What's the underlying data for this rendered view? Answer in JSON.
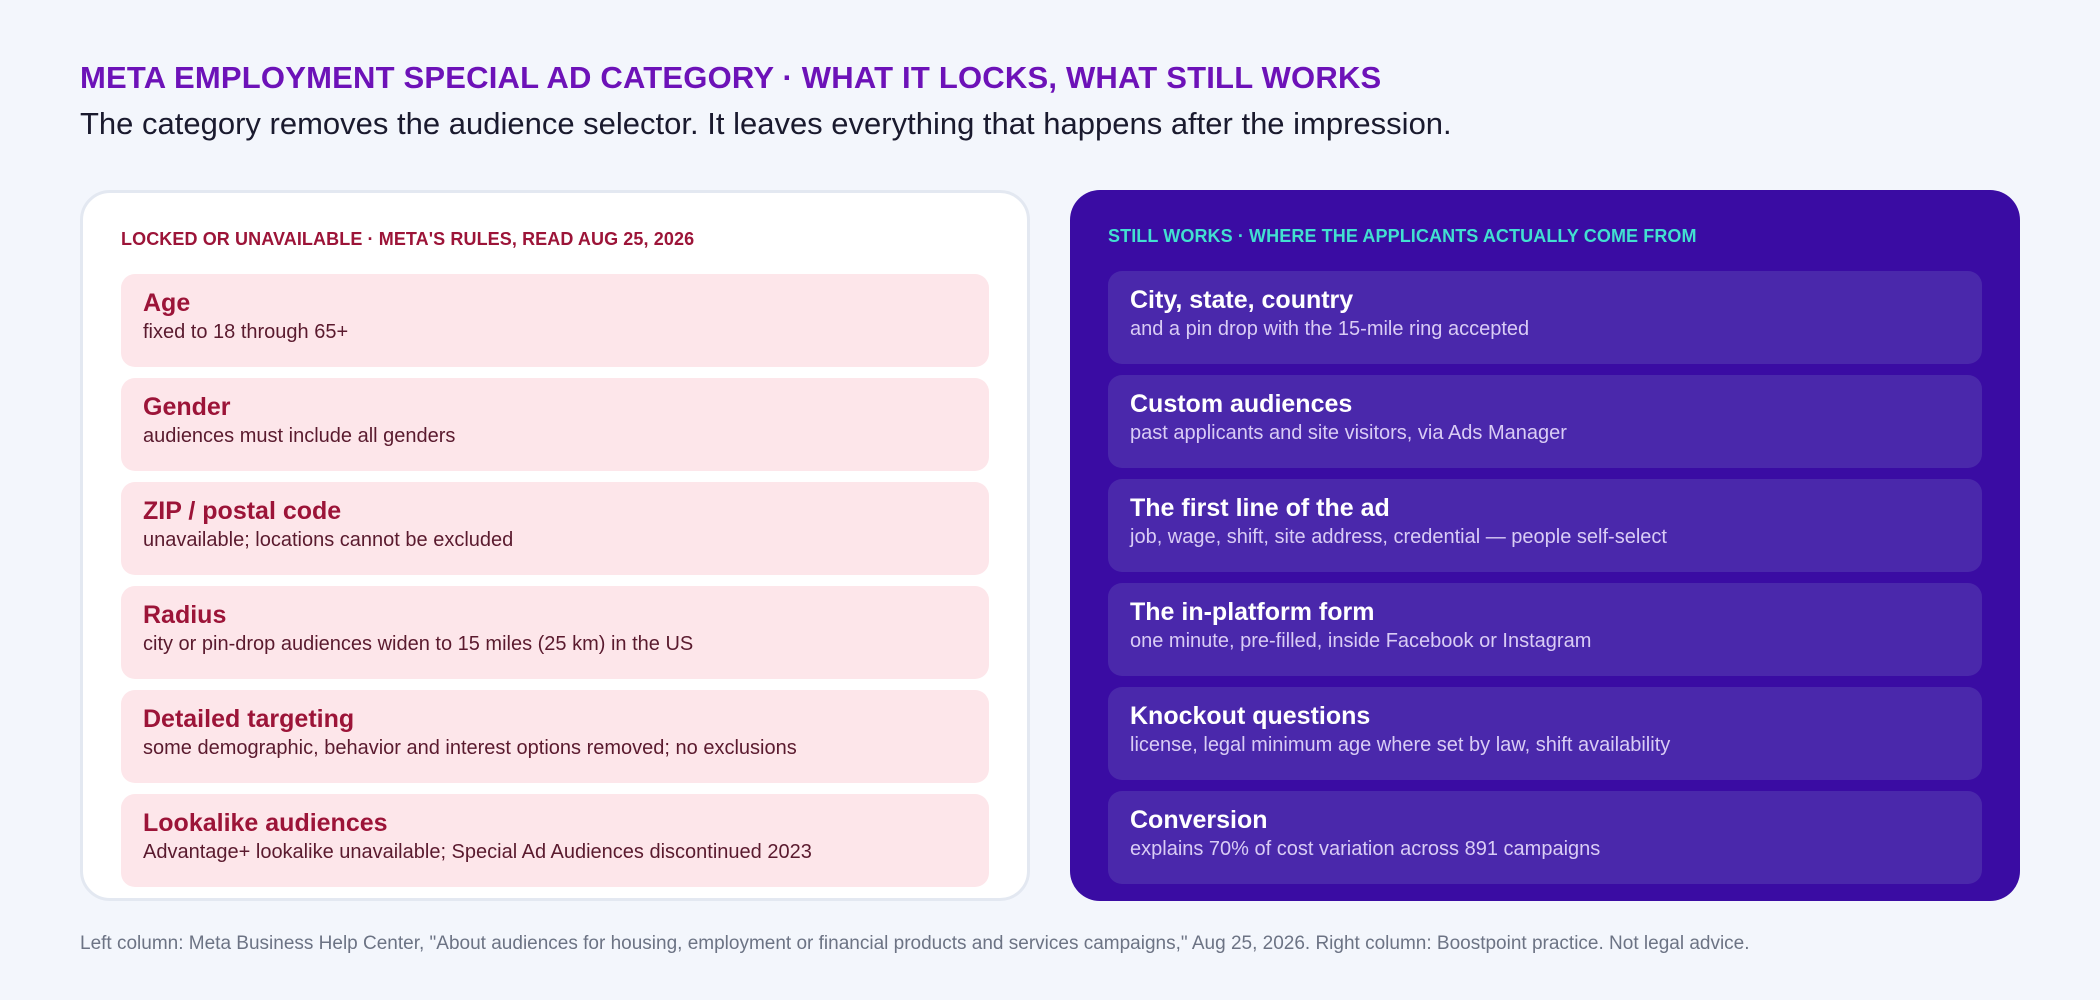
{
  "header": {
    "title": "META EMPLOYMENT SPECIAL AD CATEGORY · WHAT IT LOCKS, WHAT STILL WORKS",
    "subtitle": "The category removes the audience selector. It leaves everything that happens after the impression."
  },
  "left_panel": {
    "heading": "LOCKED OR UNAVAILABLE · META'S RULES, READ AUG 25, 2026",
    "items": [
      {
        "title": "Age",
        "desc": "fixed to 18 through 65+"
      },
      {
        "title": "Gender",
        "desc": "audiences must include all genders"
      },
      {
        "title": "ZIP / postal code",
        "desc": "unavailable; locations cannot be excluded"
      },
      {
        "title": "Radius",
        "desc": "city or pin-drop audiences widen to 15 miles (25 km) in the US"
      },
      {
        "title": "Detailed targeting",
        "desc": "some demographic, behavior and interest options removed; no exclusions"
      },
      {
        "title": "Lookalike audiences",
        "desc": "Advantage+ lookalike unavailable; Special Ad Audiences discontinued 2023"
      }
    ]
  },
  "right_panel": {
    "heading": "STILL WORKS · WHERE THE APPLICANTS ACTUALLY COME FROM",
    "items": [
      {
        "title": "City, state, country",
        "desc": "and a pin drop with the 15-mile ring accepted"
      },
      {
        "title": "Custom audiences",
        "desc": "past applicants and site visitors, via Ads Manager"
      },
      {
        "title": "The first line of the ad",
        "desc": "job, wage, shift, site address, credential — people self-select"
      },
      {
        "title": "The in-platform form",
        "desc": "one minute, pre-filled, inside Facebook or Instagram"
      },
      {
        "title": "Knockout questions",
        "desc": "license, legal minimum age where set by law, shift availability"
      },
      {
        "title": "Conversion",
        "desc": "explains 70% of cost variation across 891 campaigns"
      }
    ]
  },
  "footer": {
    "text": "Left column: Meta Business Help Center, \"About audiences for housing, employment or financial products and services campaigns,\" Aug 25, 2026. Right column: Boostpoint practice. Not legal advice."
  },
  "colors": {
    "background": "#f3f6fc",
    "title": "#6d12b8",
    "locked_accent": "#9c1438",
    "locked_card": "#fde6ea",
    "works_panel": "#3a0ca3",
    "works_card": "#4a28ab",
    "works_heading": "#42e0d0"
  }
}
